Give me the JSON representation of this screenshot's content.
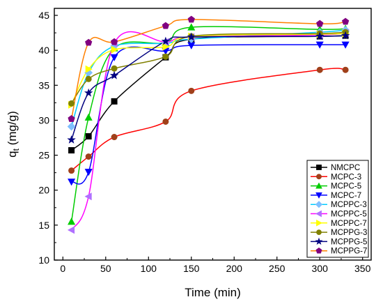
{
  "chart_data": {
    "type": "line",
    "xlabel": "Time (min)",
    "ylabel": "q",
    "ylabel_sub": "t",
    "ylabel_unit": " (mg/g)",
    "xlim": [
      -10,
      360
    ],
    "ylim": [
      10,
      46
    ],
    "xticks": [
      0,
      50,
      100,
      150,
      200,
      250,
      300,
      350
    ],
    "yticks": [
      10,
      15,
      20,
      25,
      30,
      35,
      40,
      45
    ],
    "grid": false,
    "legend_position": "bottom-right",
    "x": [
      10,
      30,
      60,
      120,
      150,
      300,
      330
    ],
    "series": [
      {
        "name": "NMCPC",
        "color": "#000000",
        "marker": "square",
        "values": [
          25.7,
          27.7,
          32.7,
          39.0,
          41.6,
          42.0,
          42.1
        ]
      },
      {
        "name": "MCPC-3",
        "color": "#ff0000",
        "marker": "circle",
        "line_color": "#ff0000",
        "marker_color": "#a0401a",
        "values": [
          22.8,
          24.8,
          27.6,
          29.8,
          34.2,
          37.2,
          37.2
        ]
      },
      {
        "name": "MCPC-5",
        "color": "#00cc00",
        "marker": "triangle-up",
        "values": [
          15.5,
          30.4,
          40.3,
          41.1,
          43.3,
          43.0,
          43.1
        ]
      },
      {
        "name": "MCPC-7",
        "color": "#0000ff",
        "marker": "triangle-down",
        "values": [
          21.2,
          22.6,
          39.0,
          39.9,
          40.7,
          40.8,
          40.8
        ]
      },
      {
        "name": "MCPPC-3",
        "color": "#00ccff",
        "marker": "diamond",
        "marker_color": "#7fbfff",
        "values": [
          29.1,
          36.8,
          40.6,
          41.0,
          41.6,
          42.6,
          42.9
        ]
      },
      {
        "name": "MCPPC-5",
        "color": "#ff00ff",
        "marker": "triangle-left",
        "marker_color": "#b070ff",
        "values": [
          14.3,
          19.1,
          41.0,
          41.2,
          41.9,
          42.2,
          42.5
        ]
      },
      {
        "name": "MCPPC-7",
        "color": "#ffff00",
        "marker": "triangle-right",
        "values": [
          32.2,
          37.3,
          40.1,
          40.5,
          42.0,
          42.3,
          42.4
        ]
      },
      {
        "name": "MCPPG-3",
        "color": "#808000",
        "marker": "circle",
        "values": [
          32.4,
          35.9,
          37.4,
          39.1,
          42.0,
          42.4,
          42.6
        ]
      },
      {
        "name": "MCPPG-5",
        "color": "#000080",
        "marker": "star",
        "values": [
          27.2,
          33.9,
          36.4,
          41.3,
          41.9,
          42.0,
          42.1
        ]
      },
      {
        "name": "MCPPG-7",
        "color": "#800080",
        "marker": "pentagon",
        "line_color": "#ff8000",
        "values": [
          30.2,
          41.1,
          41.2,
          43.5,
          44.4,
          43.8,
          44.1
        ]
      }
    ]
  }
}
